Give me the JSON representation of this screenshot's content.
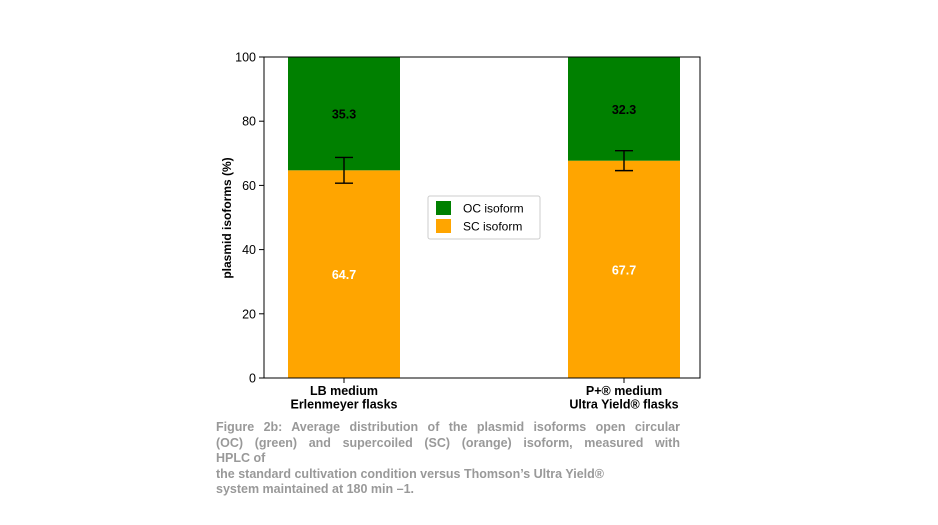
{
  "chart_data": {
    "type": "bar",
    "stacked": true,
    "categories": [
      [
        "LB medium",
        "Erlenmeyer flasks"
      ],
      [
        "P+® medium",
        "Ultra Yield® flasks"
      ]
    ],
    "series": [
      {
        "name": "SC isoform",
        "color": "#FFA500",
        "values": [
          64.7,
          67.7
        ],
        "labels": [
          "64.7",
          "67.7"
        ],
        "label_color": "#ffffff"
      },
      {
        "name": "OC isoform",
        "color": "#008000",
        "values": [
          35.3,
          32.3
        ],
        "labels": [
          "35.3",
          "32.3"
        ],
        "label_color": "#000000"
      }
    ],
    "error_bars": [
      {
        "center": 64.7,
        "low": 60.7,
        "high": 68.7
      },
      {
        "center": 67.7,
        "low": 64.6,
        "high": 70.8
      }
    ],
    "ylabel": "plasmid isoforms (%)",
    "xlabel": "",
    "ylim": [
      0,
      100
    ],
    "yticks": [
      "0",
      "20",
      "40",
      "60",
      "80",
      "100"
    ],
    "grid": false,
    "legend": {
      "placement": "center",
      "order": [
        "OC isoform",
        "SC isoform"
      ]
    }
  },
  "caption": {
    "lines": [
      "Figure 2b: Average distribution of the plasmid isoforms open circular",
      "(OC) (green) and supercoiled (SC) (orange) isoform, measured with",
      "HPLC of",
      "the standard cultivation condition versus Thomson’s Ultra Yield®",
      "system maintained at 180 min –1."
    ]
  }
}
